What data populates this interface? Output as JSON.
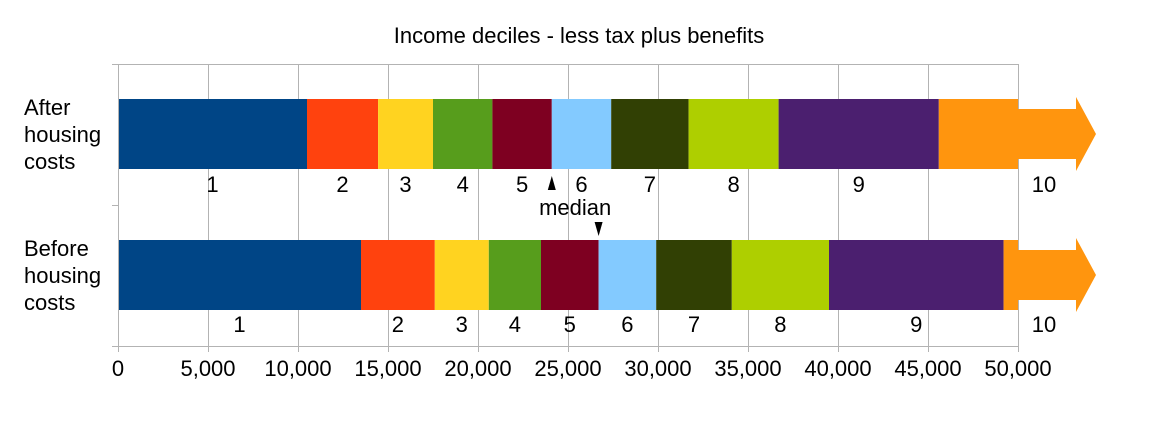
{
  "chart_data": {
    "type": "bar",
    "title": "Income deciles - less tax plus benefits",
    "xlim": [
      0,
      50000
    ],
    "xticks": [
      0,
      5000,
      10000,
      15000,
      20000,
      25000,
      30000,
      35000,
      40000,
      45000,
      50000
    ],
    "xtick_labels": [
      "0",
      "5,000",
      "10,000",
      "15,000",
      "20,000",
      "25,000",
      "30,000",
      "35,000",
      "40,000",
      "45,000",
      "50,000"
    ],
    "grid": "vertical",
    "decile_labels": [
      "1",
      "2",
      "3",
      "4",
      "5",
      "6",
      "7",
      "8",
      "9",
      "10"
    ],
    "colors": [
      "#004586",
      "#ff420e",
      "#ffd320",
      "#579d1c",
      "#7e0021",
      "#83caff",
      "#314004",
      "#aecf00",
      "#4b1f6f",
      "#ff950e"
    ],
    "median_label": "median",
    "series": [
      {
        "name": "After housing costs",
        "label_lines": [
          "After",
          "housing",
          "costs"
        ],
        "boundaries": [
          0,
          10500,
          14450,
          17500,
          20800,
          24100,
          27400,
          31700,
          36700,
          45600,
          50000
        ],
        "median": 24100,
        "median_marker": "up"
      },
      {
        "name": "Before housing costs",
        "label_lines": [
          "Before",
          "housing",
          "costs"
        ],
        "boundaries": [
          0,
          13500,
          17600,
          20600,
          23500,
          26700,
          29900,
          34100,
          39500,
          49200,
          50000
        ],
        "median": 26700,
        "median_marker": "down"
      }
    ]
  }
}
